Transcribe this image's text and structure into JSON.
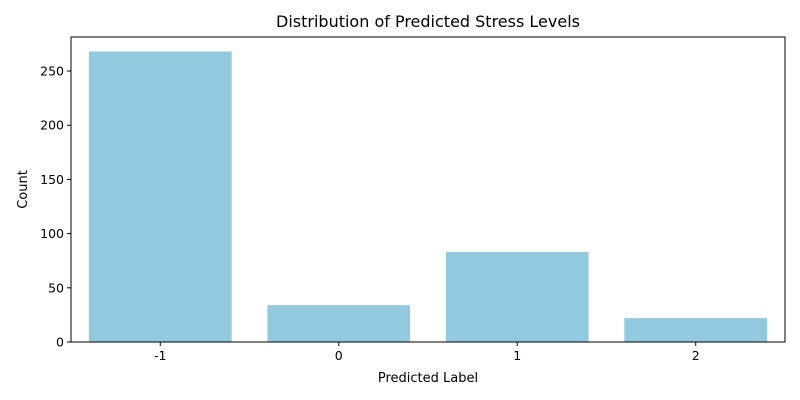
{
  "chart_data": {
    "type": "bar",
    "title": "Distribution of Predicted Stress Levels",
    "xlabel": "Predicted Label",
    "ylabel": "Count",
    "categories": [
      "-1",
      "0",
      "1",
      "2"
    ],
    "values": [
      268,
      34,
      83,
      22
    ],
    "ylim": [
      0,
      281.4
    ],
    "yticks": [
      0,
      50,
      100,
      150,
      200,
      250
    ],
    "grid": false,
    "bar_color": "#92c9df"
  }
}
